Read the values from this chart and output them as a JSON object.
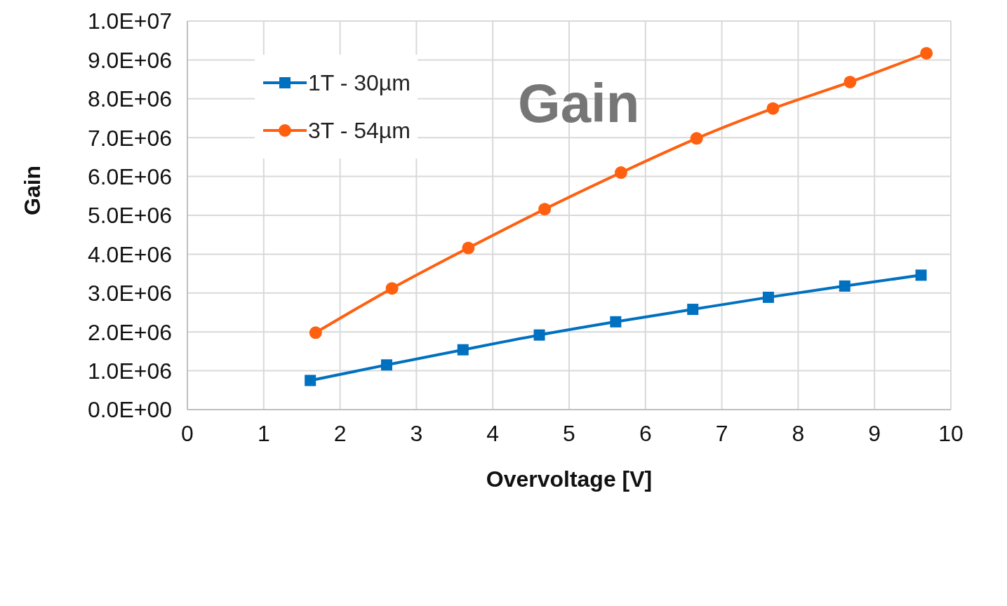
{
  "chart_data": {
    "type": "line",
    "title": "Gain",
    "xlabel": "Overvoltage [V]",
    "ylabel": "Gain",
    "xlim": [
      0,
      10
    ],
    "xticks": [
      0,
      1,
      2,
      3,
      4,
      5,
      6,
      7,
      8,
      9,
      10
    ],
    "ylim": [
      0,
      10000000
    ],
    "yticks": [
      {
        "value": 0,
        "label": "0.0E+00"
      },
      {
        "value": 1000000,
        "label": "1.0E+06"
      },
      {
        "value": 2000000,
        "label": "2.0E+06"
      },
      {
        "value": 3000000,
        "label": "3.0E+06"
      },
      {
        "value": 4000000,
        "label": "4.0E+06"
      },
      {
        "value": 5000000,
        "label": "5.0E+06"
      },
      {
        "value": 6000000,
        "label": "6.0E+06"
      },
      {
        "value": 7000000,
        "label": "7.0E+06"
      },
      {
        "value": 8000000,
        "label": "8.0E+06"
      },
      {
        "value": 9000000,
        "label": "9.0E+06"
      },
      {
        "value": 10000000,
        "label": "1.0E+07"
      }
    ],
    "grid": true,
    "legend": "top left",
    "line_style": "solid",
    "series": [
      {
        "name": "1T - 30µm",
        "color": "#0070c0",
        "marker": "square",
        "x": [
          1.61,
          2.61,
          3.61,
          4.61,
          5.61,
          6.62,
          7.61,
          8.61,
          9.61
        ],
        "values": [
          750000,
          1150000,
          1540000,
          1920000,
          2260000,
          2580000,
          2890000,
          3180000,
          3460000
        ]
      },
      {
        "name": "3T - 54µm",
        "color": "#ff6010",
        "marker": "circle",
        "x": [
          1.68,
          2.68,
          3.68,
          4.68,
          5.68,
          6.67,
          7.67,
          8.68,
          9.68
        ],
        "values": [
          1980000,
          3120000,
          4160000,
          5160000,
          6100000,
          6980000,
          7750000,
          8430000,
          9170000
        ]
      }
    ]
  }
}
